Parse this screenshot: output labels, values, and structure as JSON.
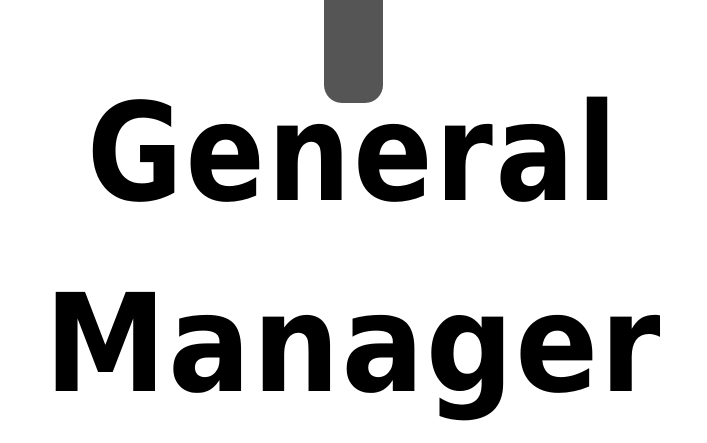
{
  "badge": {
    "slot_color": "#555555",
    "text_color": "#000000",
    "background": "#ffffff",
    "title_line_1": "General",
    "title_line_2": "Manager"
  }
}
